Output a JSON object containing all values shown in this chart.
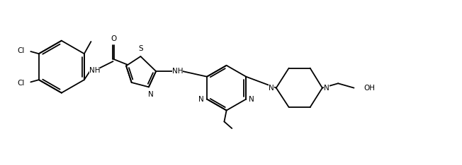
{
  "bg_color": "#ffffff",
  "line_color": "#000000",
  "lw": 1.3,
  "fs": 7.5,
  "figsize": [
    6.52,
    2.34
  ],
  "dpi": 100,
  "xlim": [
    0,
    10.2
  ],
  "ylim": [
    0.0,
    3.6
  ]
}
